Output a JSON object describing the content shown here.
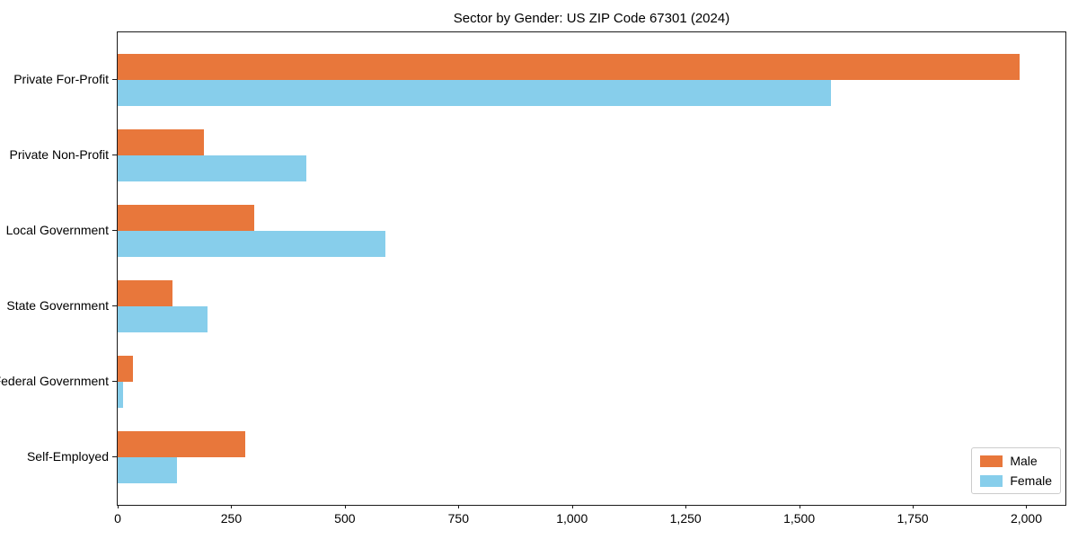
{
  "chart_data": {
    "type": "bar",
    "orientation": "horizontal",
    "title": "Sector by Gender: US ZIP Code 67301 (2024)",
    "categories": [
      "Private For-Profit",
      "Private Non-Profit",
      "Local Government",
      "State Government",
      "Federal Government",
      "Self-Employed"
    ],
    "series": [
      {
        "name": "Male",
        "color": "#e8773b",
        "values": [
          1985,
          190,
          300,
          120,
          33,
          280
        ]
      },
      {
        "name": "Female",
        "color": "#87ceeb",
        "values": [
          1570,
          415,
          590,
          198,
          12,
          130
        ]
      }
    ],
    "xlabel": "",
    "ylabel": "",
    "xlim": [
      0,
      2090
    ],
    "x_ticks": [
      0,
      250,
      500,
      750,
      1000,
      1250,
      1500,
      1750,
      2000
    ],
    "x_tick_labels": [
      "0",
      "250",
      "500",
      "750",
      "1,000",
      "1,250",
      "1,500",
      "1,750",
      "2,000"
    ],
    "grid": false,
    "legend_position": "lower right"
  }
}
